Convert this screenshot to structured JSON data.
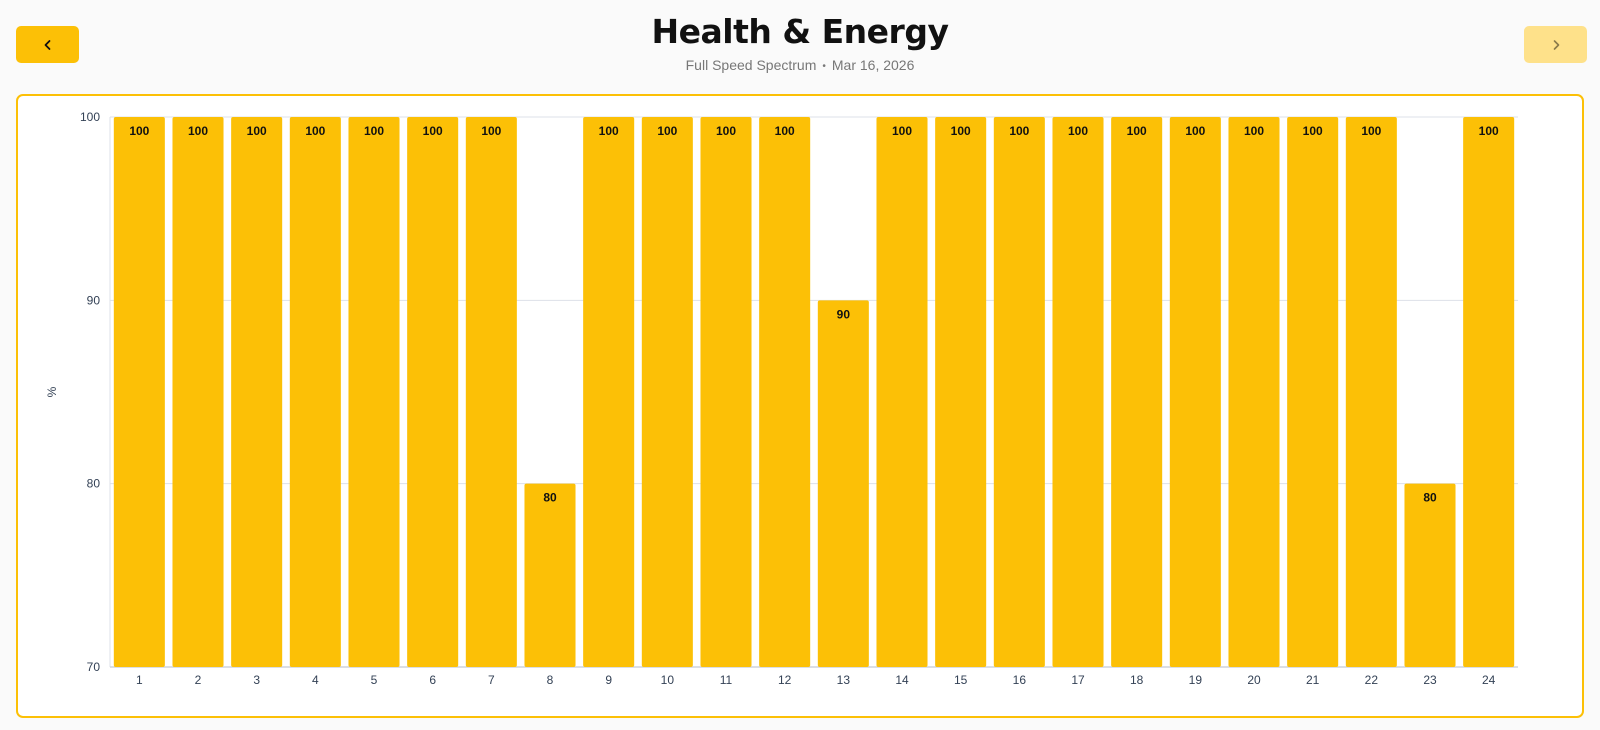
{
  "header": {
    "title": "Health & Energy",
    "subtitle_left": "Full Speed Spectrum",
    "subtitle_separator": "•",
    "subtitle_right": "Mar 16, 2026",
    "prev_icon": "chevron-left-icon",
    "next_icon": "chevron-right-icon"
  },
  "colors": {
    "bar": "#fcc006",
    "accent": "#fcc006",
    "next_button_disabled": "#fee18a",
    "grid": "#dde1e8",
    "axis_text": "#334155"
  },
  "chart_data": {
    "type": "bar",
    "title": "",
    "xlabel": "",
    "ylabel": "%",
    "ylim": [
      70,
      100
    ],
    "yticks": [
      70,
      80,
      90,
      100
    ],
    "grid": true,
    "categories": [
      "1",
      "2",
      "3",
      "4",
      "5",
      "6",
      "7",
      "8",
      "9",
      "10",
      "11",
      "12",
      "13",
      "14",
      "15",
      "16",
      "17",
      "18",
      "19",
      "20",
      "21",
      "22",
      "23",
      "24"
    ],
    "values": [
      100,
      100,
      100,
      100,
      100,
      100,
      100,
      80,
      100,
      100,
      100,
      100,
      90,
      100,
      100,
      100,
      100,
      100,
      100,
      100,
      100,
      100,
      80,
      100
    ],
    "data_labels": true
  }
}
